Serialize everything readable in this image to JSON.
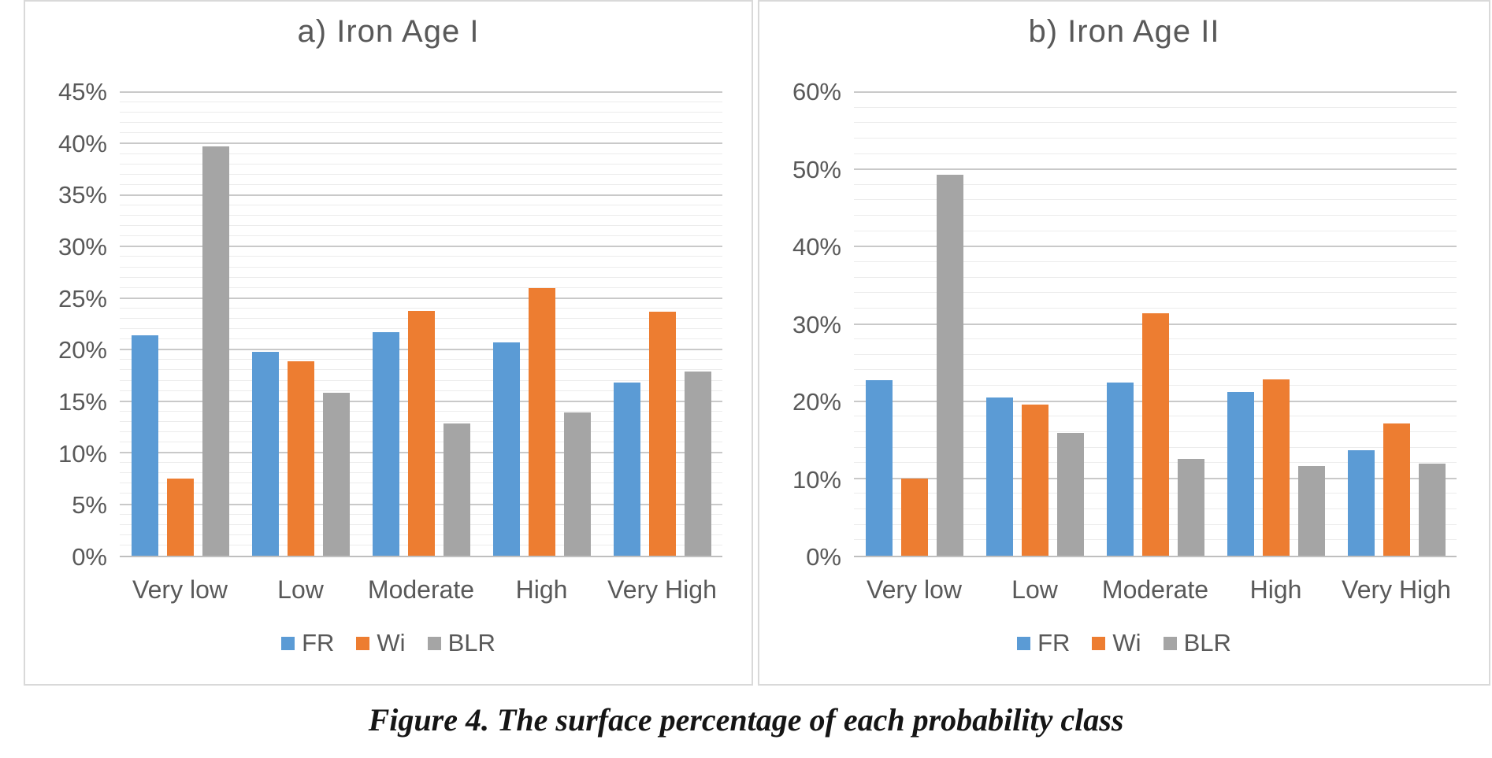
{
  "caption": "Figure 4. The surface percentage of each probability class",
  "colors": {
    "FR": "#5B9BD5",
    "Wi": "#ED7D31",
    "BLR": "#A5A5A5"
  },
  "chart_data": [
    {
      "type": "bar",
      "title": "a) Iron Age I",
      "categories": [
        "Very low",
        "Low",
        "Moderate",
        "High",
        "Very High"
      ],
      "series": [
        {
          "name": "FR",
          "color": "#5B9BD5",
          "values": [
            21.4,
            19.8,
            21.7,
            20.7,
            16.8
          ]
        },
        {
          "name": "Wi",
          "color": "#ED7D31",
          "values": [
            7.5,
            18.9,
            23.8,
            26.0,
            23.7
          ]
        },
        {
          "name": "BLR",
          "color": "#A5A5A5",
          "values": [
            39.7,
            15.8,
            12.8,
            13.9,
            17.9
          ]
        }
      ],
      "xlabel": "",
      "ylabel": "",
      "ylim": [
        0,
        45
      ],
      "y_major": 5,
      "y_minor": 1,
      "y_tick_labels": [
        "0%",
        "5%",
        "10%",
        "15%",
        "20%",
        "25%",
        "30%",
        "35%",
        "40%",
        "45%"
      ],
      "grid": true,
      "legend_position": "bottom",
      "legend_entries": [
        "FR",
        "Wi",
        "BLR"
      ]
    },
    {
      "type": "bar",
      "title": "b) Iron Age II",
      "categories": [
        "Very low",
        "Low",
        "Moderate",
        "High",
        "Very High"
      ],
      "series": [
        {
          "name": "FR",
          "color": "#5B9BD5",
          "values": [
            22.7,
            20.5,
            22.4,
            21.2,
            13.7
          ]
        },
        {
          "name": "Wi",
          "color": "#ED7D31",
          "values": [
            10.0,
            19.6,
            31.4,
            22.8,
            17.1
          ]
        },
        {
          "name": "BLR",
          "color": "#A5A5A5",
          "values": [
            49.3,
            15.9,
            12.5,
            11.6,
            11.9
          ]
        }
      ],
      "xlabel": "",
      "ylabel": "",
      "ylim": [
        0,
        60
      ],
      "y_major": 10,
      "y_minor": 2,
      "y_tick_labels": [
        "0%",
        "10%",
        "20%",
        "30%",
        "40%",
        "50%",
        "60%"
      ],
      "grid": true,
      "legend_position": "bottom",
      "legend_entries": [
        "FR",
        "Wi",
        "BLR"
      ]
    }
  ]
}
